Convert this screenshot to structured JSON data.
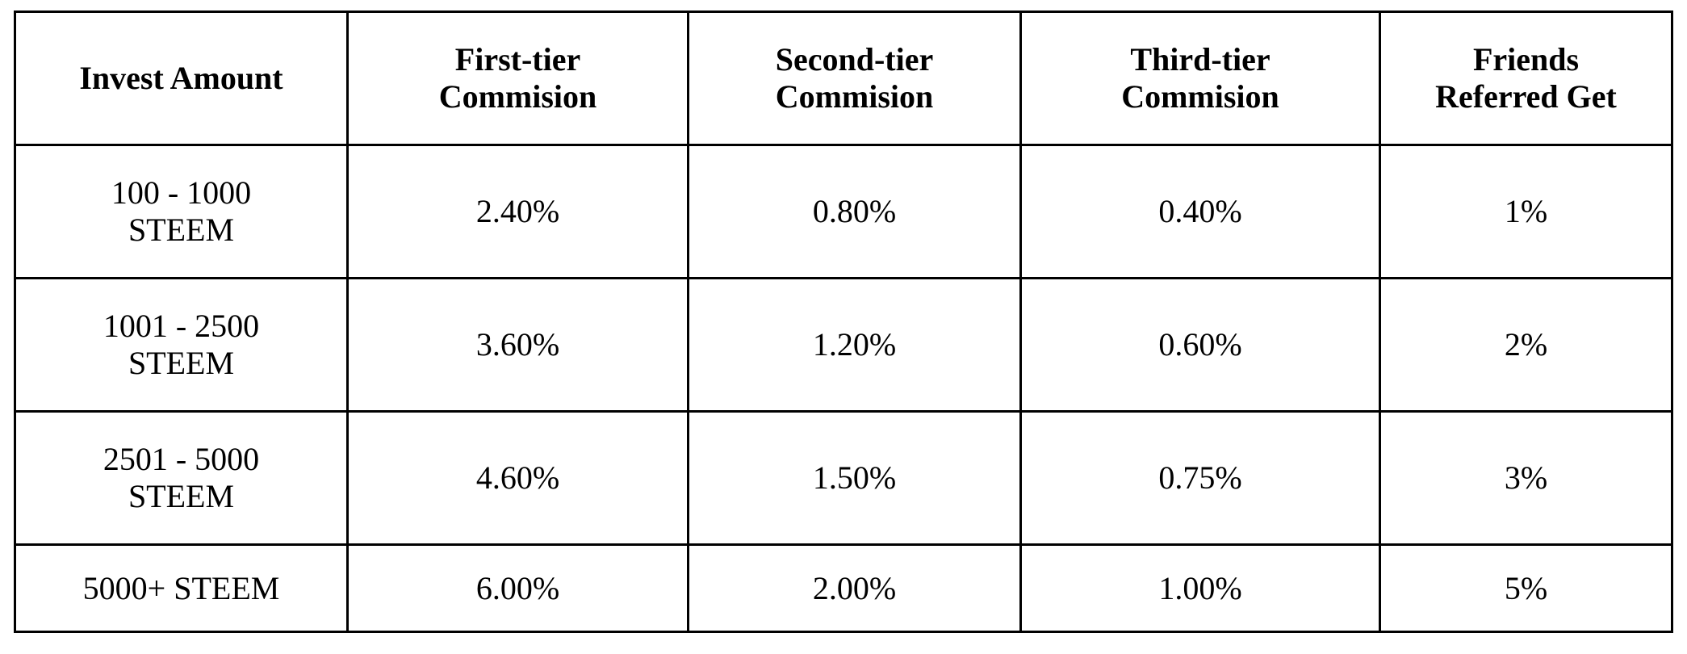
{
  "table": {
    "header": [
      [
        "Invest Amount"
      ],
      [
        "First-tier",
        "Commision"
      ],
      [
        "Second-tier",
        "Commision"
      ],
      [
        "Third-tier",
        "Commision"
      ],
      [
        "Friends",
        "Referred Get"
      ]
    ],
    "rows": [
      [
        [
          "100 - 1000",
          "STEEM"
        ],
        "2.40%",
        "0.80%",
        "0.40%",
        "1%"
      ],
      [
        [
          "1001 - 2500",
          "STEEM"
        ],
        "3.60%",
        "1.20%",
        "0.60%",
        "2%"
      ],
      [
        [
          "2501 - 5000",
          "STEEM"
        ],
        "4.60%",
        "1.50%",
        "0.75%",
        "3%"
      ],
      [
        [
          "5000+ STEEM"
        ],
        "6.00%",
        "2.00%",
        "1.00%",
        "5%"
      ]
    ]
  }
}
